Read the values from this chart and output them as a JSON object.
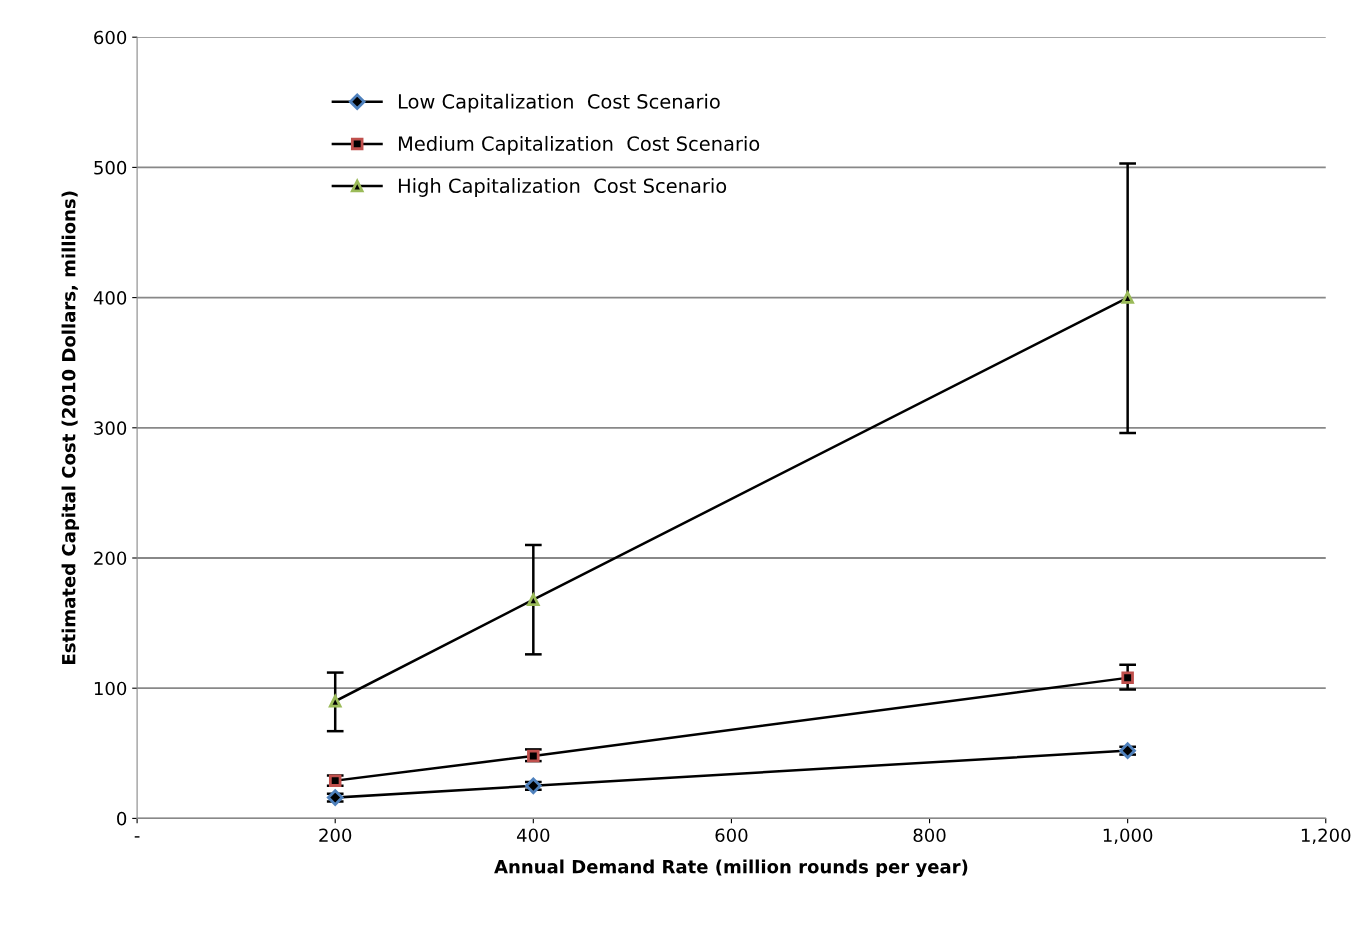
{
  "chart_data": {
    "type": "line",
    "xlabel": "Annual Demand Rate (million rounds per year)",
    "ylabel": "Estimated Capital Cost (2010 Dollars, millions)",
    "x": [
      200,
      400,
      1000
    ],
    "series": [
      {
        "name": "Low Capitalization  Cost Scenario",
        "color": "#4f81bd",
        "marker": "diamond",
        "values": [
          16,
          25,
          52
        ],
        "errors": [
          [
            13,
            19
          ],
          [
            22,
            28
          ],
          [
            49,
            55
          ]
        ]
      },
      {
        "name": "Medium Capitalization  Cost Scenario",
        "color": "#c0504d",
        "marker": "square",
        "values": [
          29,
          48,
          108
        ],
        "errors": [
          [
            25,
            33
          ],
          [
            44,
            53
          ],
          [
            99,
            118
          ]
        ]
      },
      {
        "name": "High Capitalization  Cost Scenario",
        "color": "#9bbb59",
        "marker": "triangle",
        "values": [
          90,
          168,
          400
        ],
        "errors": [
          [
            67,
            112
          ],
          [
            126,
            210
          ],
          [
            296,
            503
          ]
        ]
      }
    ],
    "xlim": [
      0,
      1200
    ],
    "xticks": [
      {
        "value": 0,
        "label": "-"
      },
      200,
      400,
      600,
      800,
      {
        "value": 1000,
        "label": "1,000"
      },
      {
        "value": 1200,
        "label": "1,200"
      }
    ],
    "ylim": [
      0,
      600
    ],
    "yticks": [
      0,
      100,
      200,
      300,
      400,
      500,
      600
    ],
    "grid": "y",
    "legend": "top left",
    "line_style": "solid"
  }
}
